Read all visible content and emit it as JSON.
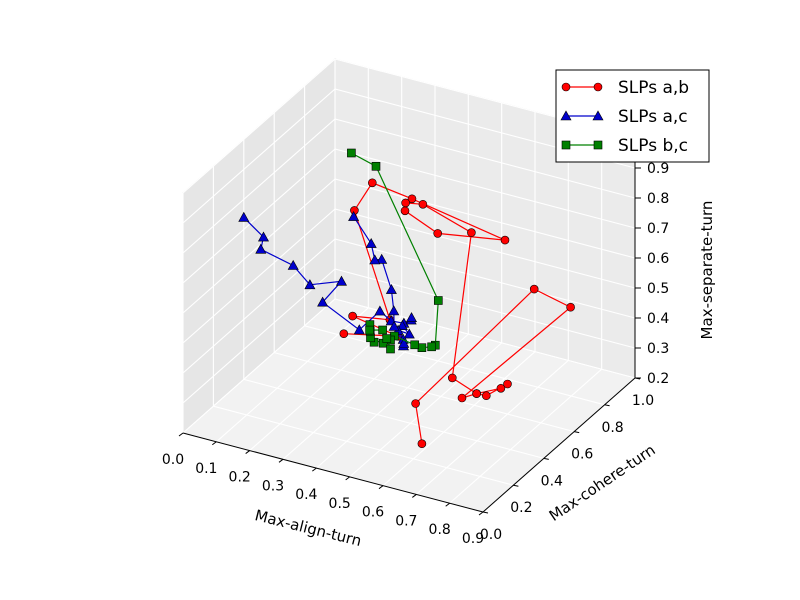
{
  "chart_data": {
    "type": "line",
    "projection": "3d",
    "xlabel": "Max-align-turn",
    "ylabel": "Max-cohere-turn",
    "zlabel": "Max-separate-turn",
    "xlim": [
      0.0,
      0.9
    ],
    "ylim": [
      0.0,
      1.0
    ],
    "zlim": [
      0.2,
      1.0
    ],
    "x_ticks": [
      "0.0",
      "0.1",
      "0.2",
      "0.3",
      "0.4",
      "0.5",
      "0.6",
      "0.7",
      "0.8",
      "0.9"
    ],
    "y_ticks": [
      "0.0",
      "0.2",
      "0.4",
      "0.6",
      "0.8",
      "1.0"
    ],
    "z_ticks": [
      "0.2",
      "0.3",
      "0.4",
      "0.5",
      "0.6",
      "0.7",
      "0.8",
      "0.9",
      "1.0"
    ],
    "grid": true,
    "legend_position": "top-right",
    "series": [
      {
        "name": "SLPs a,b",
        "color": "#ff0000",
        "marker": "circle",
        "x": [
          0.3,
          0.44,
          0.29,
          0.37,
          0.3,
          0.34,
          0.45,
          0.82,
          0.6,
          0.52,
          0.54,
          0.56,
          0.66,
          0.58,
          0.63,
          0.68,
          0.7,
          0.65,
          0.63,
          0.6,
          0.88,
          0.78,
          0.57,
          0.58
        ],
        "y": [
          0.4,
          0.45,
          0.48,
          0.55,
          0.47,
          0.5,
          0.52,
          0.32,
          0.36,
          0.32,
          0.28,
          0.35,
          0.45,
          0.5,
          0.55,
          0.6,
          0.6,
          0.57,
          0.55,
          0.52,
          0.62,
          0.6,
          0.28,
          0.3
        ],
        "z": [
          0.44,
          0.45,
          0.46,
          0.44,
          0.82,
          0.91,
          0.88,
          0.94,
          0.88,
          0.95,
          1.0,
          0.97,
          0.86,
          0.33,
          0.27,
          0.28,
          0.3,
          0.26,
          0.27,
          0.26,
          0.6,
          0.64,
          0.34,
          0.2
        ]
      },
      {
        "name": "SLPs a,c",
        "color": "#0000cc",
        "marker": "triangle",
        "x": [
          0.0,
          0.05,
          0.06,
          0.13,
          0.18,
          0.22,
          0.2,
          0.31,
          0.34,
          0.36,
          0.38,
          0.42,
          0.43,
          0.43,
          0.46,
          0.44,
          0.46,
          0.47,
          0.48,
          0.46,
          0.45,
          0.42,
          0.35,
          0.32,
          0.3,
          0.22
        ],
        "y": [
          0.4,
          0.42,
          0.38,
          0.44,
          0.44,
          0.56,
          0.48,
          0.48,
          0.55,
          0.58,
          0.62,
          0.58,
          0.56,
          0.5,
          0.48,
          0.45,
          0.44,
          0.42,
          0.4,
          0.38,
          0.4,
          0.45,
          0.54,
          0.56,
          0.58,
          0.64
        ],
        "z": [
          0.74,
          0.68,
          0.66,
          0.6,
          0.55,
          0.52,
          0.48,
          0.42,
          0.46,
          0.42,
          0.4,
          0.44,
          0.46,
          0.46,
          0.45,
          0.47,
          0.45,
          0.44,
          0.46,
          0.52,
          0.56,
          0.6,
          0.64,
          0.62,
          0.66,
          0.7
        ]
      },
      {
        "name": "SLPs b,c",
        "color": "#008000",
        "marker": "square",
        "x": [
          0.3,
          0.36,
          0.62,
          0.62,
          0.6,
          0.58,
          0.54,
          0.47,
          0.44,
          0.4,
          0.38,
          0.37,
          0.36,
          0.35,
          0.38,
          0.4,
          0.42,
          0.44
        ],
        "y": [
          0.45,
          0.48,
          0.32,
          0.3,
          0.32,
          0.3,
          0.34,
          0.36,
          0.4,
          0.38,
          0.4,
          0.42,
          0.44,
          0.46,
          0.48,
          0.44,
          0.42,
          0.4
        ],
        "z": [
          1.02,
          0.98,
          0.68,
          0.54,
          0.52,
          0.52,
          0.5,
          0.5,
          0.46,
          0.45,
          0.45,
          0.46,
          0.47,
          0.44,
          0.44,
          0.42,
          0.45,
          0.43
        ]
      }
    ]
  }
}
